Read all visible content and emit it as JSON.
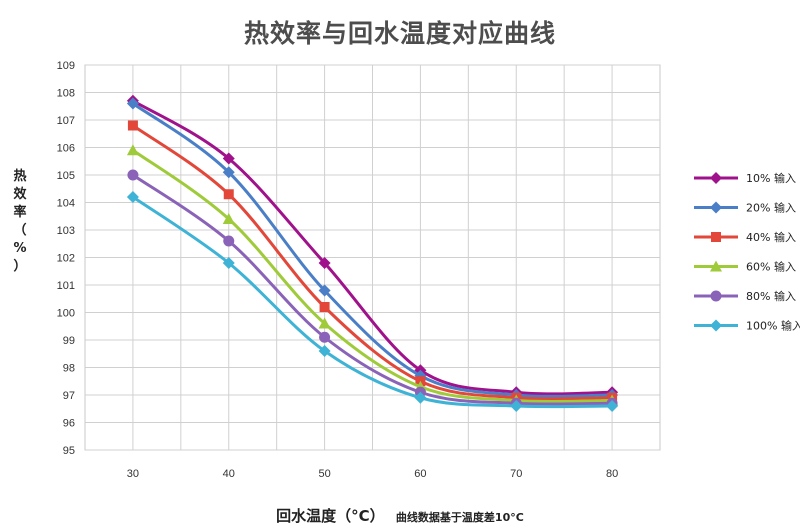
{
  "chart_data": {
    "type": "line",
    "title": "热效率与回水温度对应曲线",
    "ylabel": "热效率（%）",
    "xlabel": "回水温度（°C）",
    "xnote": "曲线数据基于温度差10°C",
    "x": [
      30,
      40,
      50,
      60,
      70,
      80
    ],
    "xlim": [
      25,
      85
    ],
    "ylim": [
      95,
      109
    ],
    "yticks": [
      95,
      96,
      97,
      98,
      99,
      100,
      101,
      102,
      103,
      104,
      105,
      106,
      107,
      108,
      109
    ],
    "grid": true,
    "legend_position": "right",
    "series": [
      {
        "name": "10%  输入",
        "color": "#a0128c",
        "marker": "diamond",
        "values": [
          107.7,
          105.6,
          101.8,
          97.9,
          97.1,
          97.1
        ]
      },
      {
        "name": "20%  输入",
        "color": "#4a7fc8",
        "marker": "diamond",
        "values": [
          107.6,
          105.1,
          100.8,
          97.7,
          97.0,
          97.0
        ]
      },
      {
        "name": "40%  输入",
        "color": "#e2473a",
        "marker": "square",
        "values": [
          106.8,
          104.3,
          100.2,
          97.5,
          96.9,
          96.9
        ]
      },
      {
        "name": "60%  输入",
        "color": "#9fcb3a",
        "marker": "triangle",
        "values": [
          105.9,
          103.4,
          99.6,
          97.3,
          96.8,
          96.8
        ]
      },
      {
        "name": "80%  输入",
        "color": "#8a63b8",
        "marker": "circle",
        "values": [
          105.0,
          102.6,
          99.1,
          97.1,
          96.7,
          96.7
        ]
      },
      {
        "name": "100% 输入",
        "color": "#3fb3d6",
        "marker": "diamond",
        "values": [
          104.2,
          101.8,
          98.6,
          96.9,
          96.6,
          96.6
        ]
      }
    ]
  }
}
